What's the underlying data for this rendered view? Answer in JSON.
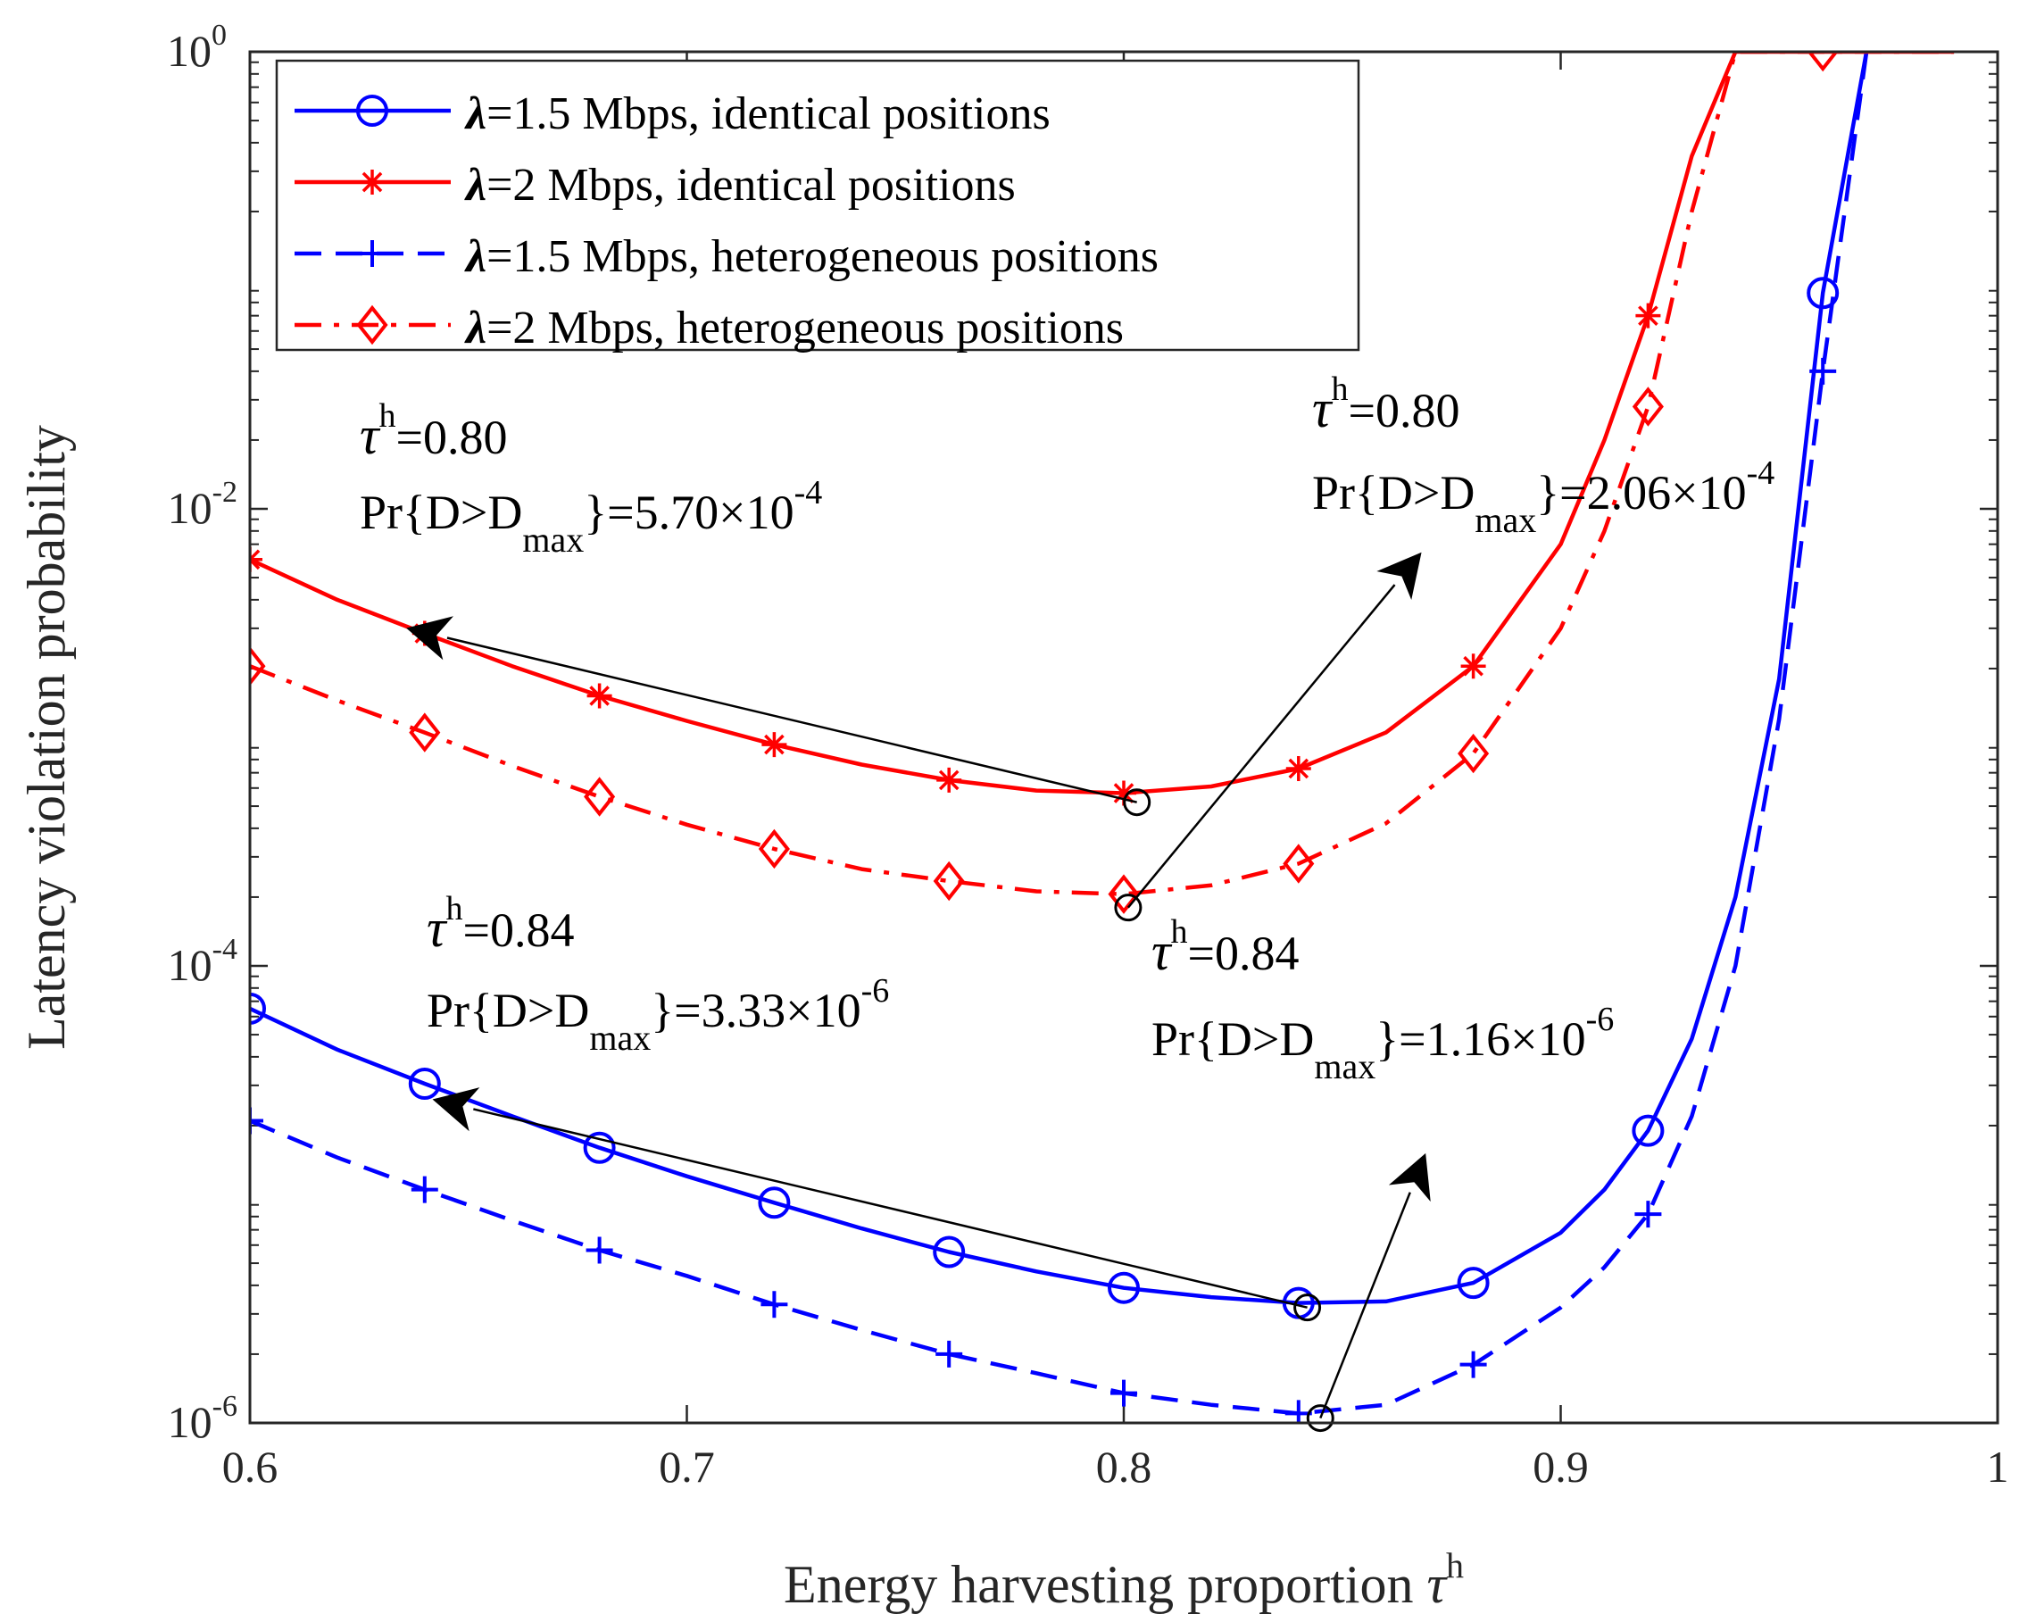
{
  "chart_data": {
    "type": "line",
    "xlabel": "Energy harvesting proportion τ^h",
    "xlabel_main": "Energy harvesting proportion ",
    "xlabel_sym": "τ",
    "xlabel_sup": "h",
    "ylabel": "Latency violation probability",
    "xlim": [
      0.6,
      1.0
    ],
    "ylim": [
      1e-06,
      1
    ],
    "yscale": "log",
    "x_ticks": [
      "0.6",
      "0.7",
      "0.8",
      "0.9",
      "1"
    ],
    "y_ticks": [
      {
        "base": "10",
        "exp": "-6"
      },
      {
        "base": "10",
        "exp": "-4"
      },
      {
        "base": "10",
        "exp": "-2"
      },
      {
        "base": "10",
        "exp": "0"
      }
    ],
    "legend_position": "top-left",
    "series": [
      {
        "name": "λ=1.5 Mbps, identical positions",
        "legend_sym": "λ",
        "legend_rest": "=1.5 Mbps, identical positions",
        "color": "#0000ff",
        "dash": "solid",
        "marker": "circle",
        "x": [
          0.6,
          0.62,
          0.64,
          0.66,
          0.68,
          0.7,
          0.72,
          0.74,
          0.76,
          0.78,
          0.8,
          0.82,
          0.84,
          0.86,
          0.88,
          0.9,
          0.91,
          0.92,
          0.93,
          0.94,
          0.95,
          0.96,
          0.97
        ],
        "y": [
          6.5e-05,
          4.3e-05,
          3.05e-05,
          2.2e-05,
          1.6e-05,
          1.2e-05,
          9.2e-06,
          7.1e-06,
          5.6e-06,
          4.6e-06,
          3.9e-06,
          3.55e-06,
          3.35e-06,
          3.4e-06,
          4.1e-06,
          6.8e-06,
          1.05e-05,
          1.9e-05,
          4.8e-05,
          0.0002,
          0.0018,
          0.088,
          1.0
        ],
        "marker_x": [
          0.6,
          0.64,
          0.68,
          0.72,
          0.76,
          0.8,
          0.84,
          0.88,
          0.92,
          0.96
        ],
        "marker_y": [
          6.5e-05,
          3.05e-05,
          1.6e-05,
          9.2e-06,
          5.6e-06,
          3.9e-06,
          3.35e-06,
          4.1e-06,
          1.9e-05,
          0.088
        ]
      },
      {
        "name": "λ=2 Mbps, identical positions",
        "legend_sym": "λ",
        "legend_rest": "=2 Mbps, identical positions",
        "color": "#ff0000",
        "dash": "solid",
        "marker": "star",
        "x": [
          0.6,
          0.62,
          0.64,
          0.66,
          0.68,
          0.7,
          0.72,
          0.74,
          0.76,
          0.78,
          0.8,
          0.82,
          0.84,
          0.86,
          0.88,
          0.9,
          0.91,
          0.92,
          0.93,
          0.94,
          0.99
        ],
        "y": [
          0.006,
          0.004,
          0.00285,
          0.00205,
          0.00152,
          0.00118,
          0.00093,
          0.00076,
          0.00065,
          0.000585,
          0.00057,
          0.00061,
          0.00073,
          0.00105,
          0.00205,
          0.007,
          0.02,
          0.07,
          0.35,
          1.0,
          1.0
        ],
        "marker_x": [
          0.6,
          0.64,
          0.68,
          0.72,
          0.76,
          0.8,
          0.84,
          0.88,
          0.92
        ],
        "marker_y": [
          0.006,
          0.00285,
          0.00152,
          0.00093,
          0.00065,
          0.00057,
          0.00073,
          0.00205,
          0.07
        ]
      },
      {
        "name": "λ=1.5 Mbps, heterogeneous positions",
        "legend_sym": "λ",
        "legend_rest": "=1.5 Mbps, heterogeneous positions",
        "color": "#0000ff",
        "dash": "dashed",
        "marker": "plus",
        "x": [
          0.6,
          0.62,
          0.64,
          0.66,
          0.68,
          0.7,
          0.72,
          0.74,
          0.76,
          0.78,
          0.8,
          0.82,
          0.84,
          0.86,
          0.88,
          0.9,
          0.91,
          0.92,
          0.93,
          0.94,
          0.95,
          0.96,
          0.97
        ],
        "y": [
          2.1e-05,
          1.45e-05,
          1.05e-05,
          7.7e-06,
          5.7e-06,
          4.4e-06,
          3.3e-06,
          2.55e-06,
          2e-06,
          1.65e-06,
          1.35e-06,
          1.2e-06,
          1.1e-06,
          1.2e-06,
          1.8e-06,
          3.2e-06,
          4.8e-06,
          8.2e-06,
          2.2e-05,
          0.0001,
          0.0012,
          0.04,
          1.0
        ],
        "marker_x": [
          0.6,
          0.64,
          0.68,
          0.72,
          0.76,
          0.8,
          0.84,
          0.88,
          0.92,
          0.96
        ],
        "marker_y": [
          2.1e-05,
          1.05e-05,
          5.7e-06,
          3.3e-06,
          2e-06,
          1.35e-06,
          1.1e-06,
          1.8e-06,
          8.2e-06,
          0.04
        ]
      },
      {
        "name": "λ=2 Mbps, heterogeneous positions",
        "legend_sym": "λ",
        "legend_rest": "=2 Mbps, heterogeneous positions",
        "color": "#ff0000",
        "dash": "dashdot",
        "marker": "diamond",
        "x": [
          0.6,
          0.62,
          0.64,
          0.66,
          0.68,
          0.7,
          0.72,
          0.74,
          0.76,
          0.78,
          0.8,
          0.82,
          0.84,
          0.86,
          0.88,
          0.9,
          0.91,
          0.92,
          0.93,
          0.94,
          0.99
        ],
        "y": [
          0.00205,
          0.00145,
          0.00105,
          0.00075,
          0.00055,
          0.000415,
          0.000325,
          0.000265,
          0.000235,
          0.000212,
          0.000206,
          0.000225,
          0.00028,
          0.00042,
          0.00085,
          0.003,
          0.008,
          0.028,
          0.2,
          1.0,
          1.0
        ],
        "marker_x": [
          0.6,
          0.64,
          0.68,
          0.72,
          0.76,
          0.8,
          0.84,
          0.88,
          0.92,
          0.96
        ],
        "marker_y": [
          0.00205,
          0.00105,
          0.00055,
          0.000325,
          0.000235,
          0.000206,
          0.00028,
          0.00085,
          0.028,
          1.0
        ]
      }
    ],
    "annotations": [
      {
        "tau": "0.80",
        "pr_base": "10",
        "pr_mant": "5.70",
        "pr_exp": "-4",
        "point": [
          0.803,
          0.00052
        ],
        "arrow_to": [
          0.636,
          0.003
        ]
      },
      {
        "tau": "0.80",
        "pr_base": "10",
        "pr_mant": "2.06",
        "pr_exp": "-4",
        "point": [
          0.801,
          0.00018
        ],
        "arrow_to": [
          0.868,
          0.0064
        ]
      },
      {
        "tau": "0.84",
        "pr_base": "10",
        "pr_mant": "3.33",
        "pr_exp": "-6",
        "point": [
          0.842,
          3.2e-06
        ],
        "arrow_to": [
          0.642,
          2.6e-05
        ]
      },
      {
        "tau": "0.84",
        "pr_base": "10",
        "pr_mant": "1.16",
        "pr_exp": "-6",
        "point": [
          0.845,
          1.05e-06
        ],
        "arrow_to": [
          0.869,
          1.5e-05
        ]
      }
    ]
  }
}
